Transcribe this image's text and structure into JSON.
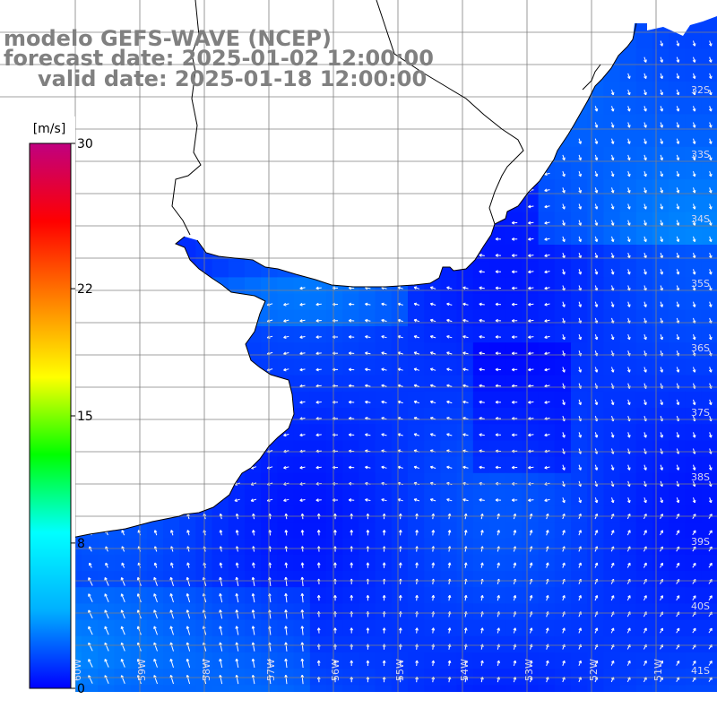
{
  "title": {
    "line1": "modelo GEFS-WAVE (NCEP)",
    "line2": "forecast date: 2025-01-02 12:00:00",
    "line3": "valid date: 2025-01-18 12:00:00"
  },
  "colorbar": {
    "unit": "[m/s]",
    "ticks": [
      "30",
      "22",
      "15",
      "8",
      "0"
    ],
    "tick_values": [
      30,
      22,
      15,
      8,
      0
    ],
    "range": [
      0,
      30
    ],
    "colors": [
      "#0000ff",
      "#00b0ff",
      "#00ffff",
      "#00ff00",
      "#ffff00",
      "#ff8000",
      "#ff0000",
      "#c00080"
    ]
  },
  "grid": {
    "lat_labels": [
      "32S",
      "33S",
      "34S",
      "35S",
      "36S",
      "37S",
      "38S",
      "39S",
      "40S",
      "41S"
    ],
    "lon_labels": [
      "60W",
      "59W",
      "58W",
      "57W",
      "56W",
      "55W",
      "54W",
      "53W",
      "52W",
      "51W"
    ]
  },
  "colors": {
    "land": "#ffffff",
    "coast": "#000000",
    "gridline": "#808080",
    "title": "#808080",
    "arrow": "#ffffff"
  }
}
